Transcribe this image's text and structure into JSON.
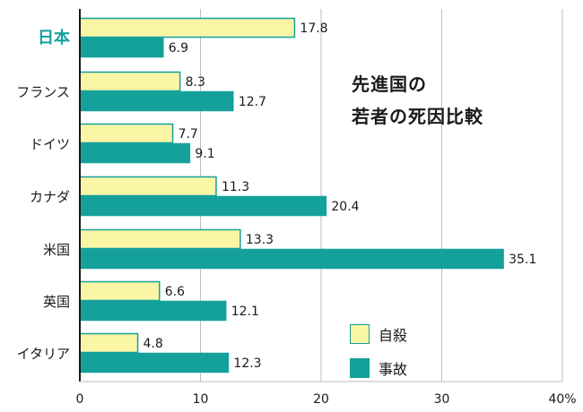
{
  "chart_data": {
    "type": "bar",
    "orientation": "horizontal",
    "title_lines": [
      "先進国の",
      "若者の死因比較"
    ],
    "categories": [
      "日本",
      "フランス",
      "ドイツ",
      "カナダ",
      "米国",
      "英国",
      "イタリア"
    ],
    "series": [
      {
        "name": "自殺",
        "values": [
          17.8,
          8.3,
          7.7,
          11.3,
          13.3,
          6.6,
          4.8
        ],
        "color": "#fbf6a6",
        "stroke": "#14a19c"
      },
      {
        "name": "事故",
        "values": [
          6.9,
          12.7,
          9.1,
          20.4,
          35.1,
          12.1,
          12.3
        ],
        "color": "#14a19c",
        "stroke": "#14a19c"
      }
    ],
    "x_ticks": [
      "0",
      "10",
      "20",
      "30",
      "40%"
    ],
    "xlim": [
      0,
      40
    ],
    "grid": true,
    "highlight_category": "日本",
    "highlight_color": "#14a19c",
    "legend_position": "bottom-right"
  }
}
